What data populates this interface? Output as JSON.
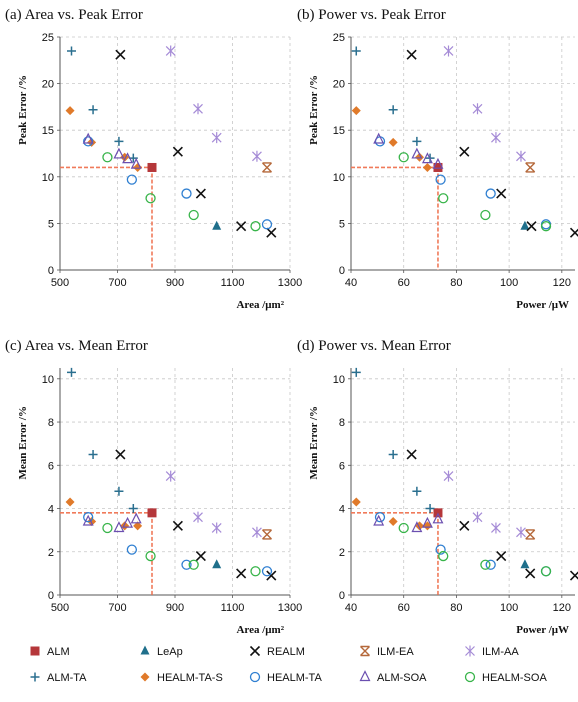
{
  "figure": {
    "legend": [
      {
        "name": "ALM",
        "color": "#b5373a",
        "marker": "square"
      },
      {
        "name": "LeAp",
        "color": "#1f6f8b",
        "marker": "triangle"
      },
      {
        "name": "REALM",
        "color": "#111111",
        "marker": "x"
      },
      {
        "name": "ILM-EA",
        "color": "#b5683a",
        "marker": "xbar"
      },
      {
        "name": "ILM-AA",
        "color": "#a58bd6",
        "marker": "star"
      },
      {
        "name": "ALM-TA",
        "color": "#2a6f8f",
        "marker": "plus"
      },
      {
        "name": "HEALM-TA-S",
        "color": "#e07a2a",
        "marker": "diamond"
      },
      {
        "name": "HEALM-TA",
        "color": "#2f7fd1",
        "marker": "circle"
      },
      {
        "name": "ALM-SOA",
        "color": "#6b4fb0",
        "marker": "triangle-open"
      },
      {
        "name": "HEALM-SOA",
        "color": "#38b44a",
        "marker": "circle"
      }
    ]
  },
  "chart_data": [
    {
      "type": "scatter",
      "title": "(a) Area vs. Peak Error",
      "xlabel": "Area /μm²",
      "ylabel": "Peak Error /%",
      "xlim": [
        500,
        1300
      ],
      "ylim": [
        0,
        25
      ],
      "xticks": [
        "500",
        "700",
        "900",
        "1100",
        "1300"
      ],
      "yticks": [
        "0",
        "5",
        "10",
        "15",
        "20",
        "25"
      ],
      "reference": {
        "x": 820,
        "y": 11
      },
      "series": [
        {
          "name": "ALM",
          "x": [
            820
          ],
          "y": [
            11
          ]
        },
        {
          "name": "LeAp",
          "x": [
            1045
          ],
          "y": [
            4.7
          ]
        },
        {
          "name": "REALM",
          "x": [
            710,
            910,
            990,
            1130,
            1235
          ],
          "y": [
            23.1,
            12.7,
            8.2,
            4.7,
            4.0
          ]
        },
        {
          "name": "ILM-EA",
          "x": [
            1220
          ],
          "y": [
            11
          ]
        },
        {
          "name": "ILM-AA",
          "x": [
            885,
            980,
            1045,
            1185
          ],
          "y": [
            23.5,
            17.3,
            14.2,
            12.2
          ]
        },
        {
          "name": "ALM-TA",
          "x": [
            540,
            615,
            705,
            755
          ],
          "y": [
            23.5,
            17.2,
            13.8,
            12.0
          ]
        },
        {
          "name": "HEALM-TA-S",
          "x": [
            535,
            610,
            725,
            770
          ],
          "y": [
            17.1,
            13.7,
            12.1,
            11.0
          ]
        },
        {
          "name": "HEALM-TA",
          "x": [
            598,
            750,
            940,
            1220
          ],
          "y": [
            13.8,
            9.7,
            8.2,
            4.9
          ]
        },
        {
          "name": "ALM-SOA",
          "x": [
            598,
            705,
            735,
            765
          ],
          "y": [
            14.0,
            12.4,
            11.9,
            11.3
          ]
        },
        {
          "name": "HEALM-SOA",
          "x": [
            665,
            815,
            965,
            1180
          ],
          "y": [
            12.1,
            7.7,
            5.9,
            4.7
          ]
        }
      ]
    },
    {
      "type": "scatter",
      "title": "(b) Power vs. Peak Error",
      "xlabel": "Power /μW",
      "ylabel": "Peak Error /%",
      "xlim": [
        40,
        125
      ],
      "ylim": [
        0,
        25
      ],
      "xticks": [
        "40",
        "60",
        "80",
        "100",
        "120"
      ],
      "yticks": [
        "0",
        "5",
        "10",
        "15",
        "20",
        "25"
      ],
      "reference": {
        "x": 73,
        "y": 11
      },
      "series": [
        {
          "name": "ALM",
          "x": [
            73
          ],
          "y": [
            11
          ]
        },
        {
          "name": "LeAp",
          "x": [
            106
          ],
          "y": [
            4.7
          ]
        },
        {
          "name": "REALM",
          "x": [
            63,
            83,
            97,
            108.5,
            125
          ],
          "y": [
            23.1,
            12.7,
            8.2,
            4.7,
            4.0
          ]
        },
        {
          "name": "ILM-EA",
          "x": [
            108
          ],
          "y": [
            11
          ]
        },
        {
          "name": "ILM-AA",
          "x": [
            77,
            88,
            95,
            104.5
          ],
          "y": [
            23.5,
            17.3,
            14.2,
            12.2
          ]
        },
        {
          "name": "ALM-TA",
          "x": [
            42,
            56,
            65,
            70
          ],
          "y": [
            23.5,
            17.2,
            13.8,
            12.0
          ]
        },
        {
          "name": "HEALM-TA-S",
          "x": [
            42,
            56,
            66,
            69
          ],
          "y": [
            17.1,
            13.7,
            12.1,
            11.0
          ]
        },
        {
          "name": "HEALM-TA",
          "x": [
            51,
            74,
            93,
            114
          ],
          "y": [
            13.8,
            9.7,
            8.2,
            4.9
          ]
        },
        {
          "name": "ALM-SOA",
          "x": [
            50.5,
            65,
            69,
            73
          ],
          "y": [
            14.0,
            12.4,
            11.9,
            11.3
          ]
        },
        {
          "name": "HEALM-SOA",
          "x": [
            60,
            75,
            91,
            114
          ],
          "y": [
            12.1,
            7.7,
            5.9,
            4.7
          ]
        }
      ]
    },
    {
      "type": "scatter",
      "title": "(c) Area vs. Mean Error",
      "xlabel": "Area /μm²",
      "ylabel": "Mean Error /%",
      "xlim": [
        500,
        1300
      ],
      "ylim": [
        0,
        10.5
      ],
      "xticks": [
        "500",
        "700",
        "900",
        "1100",
        "1300"
      ],
      "yticks": [
        "0",
        "2",
        "4",
        "6",
        "8",
        "10"
      ],
      "reference": {
        "x": 820,
        "y": 3.8
      },
      "series": [
        {
          "name": "ALM",
          "x": [
            820
          ],
          "y": [
            3.8
          ]
        },
        {
          "name": "LeAp",
          "x": [
            1045
          ],
          "y": [
            1.4
          ]
        },
        {
          "name": "REALM",
          "x": [
            710,
            910,
            990,
            1130,
            1235
          ],
          "y": [
            6.5,
            3.2,
            1.8,
            1.0,
            0.9
          ]
        },
        {
          "name": "ILM-EA",
          "x": [
            1220
          ],
          "y": [
            2.8
          ]
        },
        {
          "name": "ILM-AA",
          "x": [
            885,
            980,
            1045,
            1185
          ],
          "y": [
            5.5,
            3.6,
            3.1,
            2.9
          ]
        },
        {
          "name": "ALM-TA",
          "x": [
            540,
            615,
            705,
            755
          ],
          "y": [
            10.3,
            6.5,
            4.8,
            4.0
          ]
        },
        {
          "name": "HEALM-TA-S",
          "x": [
            535,
            610,
            725,
            770
          ],
          "y": [
            4.3,
            3.4,
            3.2,
            3.2
          ]
        },
        {
          "name": "HEALM-TA",
          "x": [
            598,
            750,
            940,
            1220
          ],
          "y": [
            3.6,
            2.1,
            1.4,
            1.1
          ]
        },
        {
          "name": "ALM-SOA",
          "x": [
            598,
            705,
            735,
            765
          ],
          "y": [
            3.4,
            3.1,
            3.3,
            3.5
          ]
        },
        {
          "name": "HEALM-SOA",
          "x": [
            665,
            815,
            965,
            1180
          ],
          "y": [
            3.1,
            1.8,
            1.4,
            1.1
          ]
        }
      ]
    },
    {
      "type": "scatter",
      "title": "(d) Power vs. Mean Error",
      "xlabel": "Power /μW",
      "ylabel": "Mean Error /%",
      "xlim": [
        40,
        125
      ],
      "ylim": [
        0,
        10.5
      ],
      "xticks": [
        "40",
        "60",
        "80",
        "100",
        "120"
      ],
      "yticks": [
        "0",
        "2",
        "4",
        "6",
        "8",
        "10"
      ],
      "reference": {
        "x": 73,
        "y": 3.8
      },
      "series": [
        {
          "name": "ALM",
          "x": [
            73
          ],
          "y": [
            3.8
          ]
        },
        {
          "name": "LeAp",
          "x": [
            106
          ],
          "y": [
            1.4
          ]
        },
        {
          "name": "REALM",
          "x": [
            63,
            83,
            97,
            108,
            125
          ],
          "y": [
            6.5,
            3.2,
            1.8,
            1.0,
            0.9
          ]
        },
        {
          "name": "ILM-EA",
          "x": [
            108
          ],
          "y": [
            2.8
          ]
        },
        {
          "name": "ILM-AA",
          "x": [
            77,
            88,
            95,
            104.5
          ],
          "y": [
            5.5,
            3.6,
            3.1,
            2.9
          ]
        },
        {
          "name": "ALM-TA",
          "x": [
            42,
            56,
            65,
            70
          ],
          "y": [
            10.3,
            6.5,
            4.8,
            4.0
          ]
        },
        {
          "name": "HEALM-TA-S",
          "x": [
            42,
            56,
            66,
            69
          ],
          "y": [
            4.3,
            3.4,
            3.2,
            3.2
          ]
        },
        {
          "name": "HEALM-TA",
          "x": [
            51,
            74,
            93,
            114
          ],
          "y": [
            3.6,
            2.1,
            1.4,
            1.1
          ]
        },
        {
          "name": "ALM-SOA",
          "x": [
            50.5,
            65,
            69,
            73
          ],
          "y": [
            3.4,
            3.1,
            3.3,
            3.5
          ]
        },
        {
          "name": "HEALM-SOA",
          "x": [
            60,
            75,
            91,
            114
          ],
          "y": [
            3.1,
            1.8,
            1.4,
            1.1
          ]
        }
      ]
    }
  ]
}
